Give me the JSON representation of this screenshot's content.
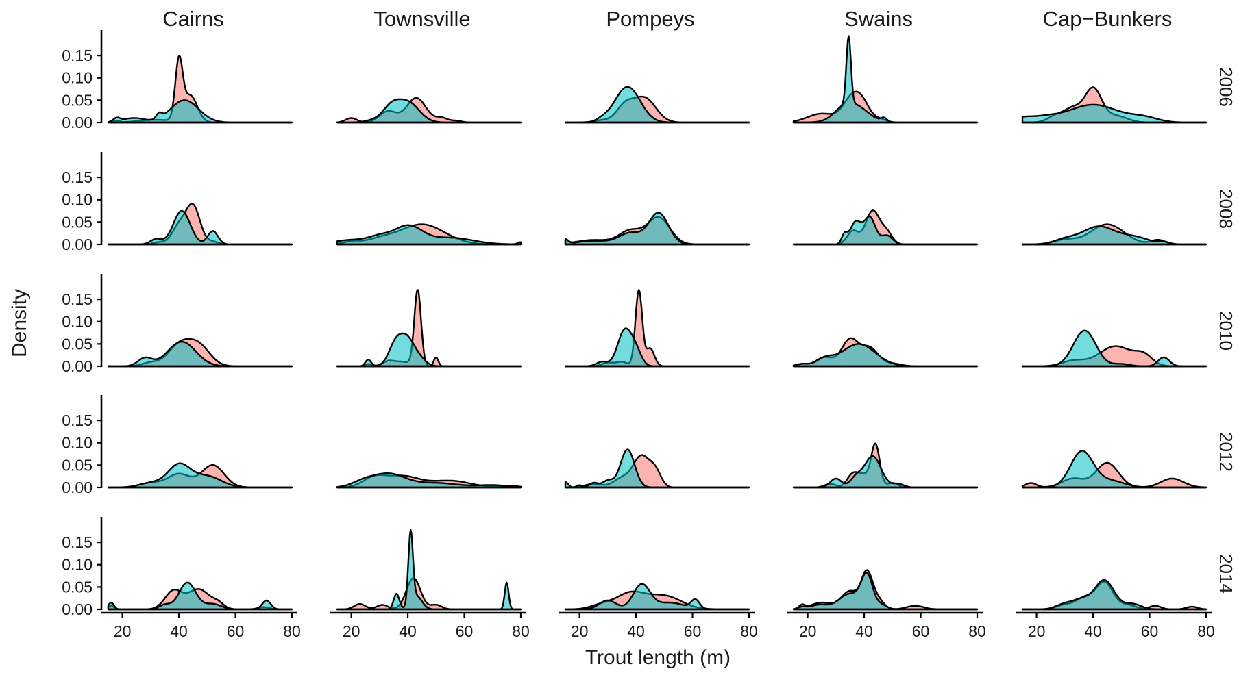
{
  "chart_data": {
    "type": "area",
    "subtype": "faceted-density",
    "xlabel": "Trout length (m)",
    "ylabel": "Density",
    "xlim": [
      15,
      80
    ],
    "ylim": [
      0,
      0.19
    ],
    "x_ticks": [
      20,
      40,
      60,
      80
    ],
    "y_ticks": [
      "0.00",
      "0.05",
      "0.10",
      "0.15"
    ],
    "columns": [
      "Cairns",
      "Townsville",
      "Pompeys",
      "Swains",
      "Cap−Bunkers"
    ],
    "rows": [
      "2006",
      "2008",
      "2010",
      "2012",
      "2014"
    ],
    "grid": false,
    "legend": "none",
    "group_colors": [
      "#F8766D",
      "#00BFC4"
    ],
    "fill_alpha": 0.55,
    "panels": [
      {
        "column": "Cairns",
        "row": "2006",
        "red": [
          [
            0.004,
            18,
            1
          ],
          [
            0.13,
            40,
            1.3
          ],
          [
            0.06,
            44,
            2.5
          ],
          [
            0.006,
            32,
            6
          ]
        ],
        "cyan": [
          [
            0.008,
            18,
            1.2
          ],
          [
            0.01,
            24,
            4
          ],
          [
            0.012,
            33,
            1
          ],
          [
            0.05,
            42,
            5
          ]
        ]
      },
      {
        "column": "Townsville",
        "row": "2006",
        "red": [
          [
            0.01,
            20,
            2
          ],
          [
            0.025,
            33,
            3
          ],
          [
            0.055,
            43,
            3.5
          ],
          [
            0.01,
            52,
            2
          ],
          [
            0.004,
            57,
            2
          ]
        ],
        "cyan": [
          [
            0.005,
            28,
            3
          ],
          [
            0.03,
            34,
            3
          ],
          [
            0.045,
            40,
            4
          ]
        ]
      },
      {
        "column": "Pompeys",
        "row": "2006",
        "red": [
          [
            0.005,
            28,
            3
          ],
          [
            0.035,
            36,
            3
          ],
          [
            0.055,
            43,
            4
          ]
        ],
        "cyan": [
          [
            0.005,
            28,
            2
          ],
          [
            0.08,
            37,
            4.5
          ]
        ]
      },
      {
        "column": "Swains",
        "row": "2006",
        "red": [
          [
            0.02,
            25,
            5
          ],
          [
            0.04,
            35,
            3
          ],
          [
            0.045,
            39,
            3
          ],
          [
            0.006,
            46,
            2
          ]
        ],
        "cyan": [
          [
            0.008,
            32,
            3
          ],
          [
            0.15,
            34.5,
            0.8
          ],
          [
            0.04,
            36,
            5
          ],
          [
            0.008,
            47,
            1
          ]
        ]
      },
      {
        "column": "Cap−Bunkers",
        "row": "2006",
        "red": [
          [
            0.015,
            27,
            3
          ],
          [
            0.03,
            33,
            3
          ],
          [
            0.075,
            40,
            3
          ],
          [
            0.015,
            48,
            4
          ]
        ],
        "cyan": [
          [
            0.008,
            15,
            3
          ],
          [
            0.01,
            22,
            5
          ],
          [
            0.04,
            40,
            9
          ],
          [
            0.01,
            58,
            5
          ]
        ]
      },
      {
        "column": "Cairns",
        "row": "2008",
        "red": [
          [
            0.005,
            33,
            2
          ],
          [
            0.04,
            40,
            2.5
          ],
          [
            0.085,
            45,
            2.5
          ],
          [
            0.006,
            52,
            2
          ]
        ],
        "cyan": [
          [
            0.012,
            32,
            2
          ],
          [
            0.075,
            41,
            3
          ],
          [
            0.03,
            52,
            1.8
          ]
        ]
      },
      {
        "column": "Townsville",
        "row": "2008",
        "red": [
          [
            0.006,
            20,
            3
          ],
          [
            0.01,
            30,
            5
          ],
          [
            0.045,
            45,
            8
          ],
          [
            0.005,
            80,
            1
          ]
        ],
        "cyan": [
          [
            0.01,
            20,
            6
          ],
          [
            0.015,
            30,
            4
          ],
          [
            0.04,
            40,
            5
          ],
          [
            0.015,
            55,
            8
          ],
          [
            0.005,
            80,
            1
          ]
        ]
      },
      {
        "column": "Pompeys",
        "row": "2008",
        "red": [
          [
            0.008,
            15,
            1
          ],
          [
            0.01,
            25,
            6
          ],
          [
            0.03,
            38,
            4
          ],
          [
            0.06,
            48,
            4
          ]
        ],
        "cyan": [
          [
            0.01,
            15,
            1
          ],
          [
            0.008,
            25,
            6
          ],
          [
            0.025,
            38,
            4
          ],
          [
            0.07,
            48,
            3.5
          ]
        ]
      },
      {
        "column": "Swains",
        "row": "2008",
        "red": [
          [
            0.03,
            36,
            2
          ],
          [
            0.075,
            43,
            2.5
          ],
          [
            0.025,
            48,
            2
          ]
        ],
        "cyan": [
          [
            0.02,
            33,
            1
          ],
          [
            0.05,
            37,
            2
          ],
          [
            0.06,
            42,
            2
          ],
          [
            0.02,
            48,
            2
          ]
        ]
      },
      {
        "column": "Cap−Bunkers",
        "row": "2008",
        "red": [
          [
            0.01,
            30,
            4
          ],
          [
            0.045,
            45,
            6
          ],
          [
            0.01,
            63,
            2.5
          ]
        ],
        "cyan": [
          [
            0.01,
            30,
            4
          ],
          [
            0.04,
            42,
            6
          ],
          [
            0.015,
            55,
            5
          ],
          [
            0.005,
            65,
            2
          ]
        ]
      },
      {
        "column": "Cairns",
        "row": "2010",
        "red": [
          [
            0.008,
            30,
            3
          ],
          [
            0.045,
            40,
            4
          ],
          [
            0.045,
            47,
            4
          ]
        ],
        "cyan": [
          [
            0.018,
            28,
            2.5
          ],
          [
            0.055,
            41,
            5
          ]
        ]
      },
      {
        "column": "Townsville",
        "row": "2010",
        "red": [
          [
            0.005,
            26,
            1
          ],
          [
            0.01,
            33,
            2
          ],
          [
            0.17,
            43.5,
            1.2
          ],
          [
            0.01,
            38,
            3
          ],
          [
            0.02,
            50,
            0.8
          ]
        ],
        "cyan": [
          [
            0.015,
            26,
            1
          ],
          [
            0.02,
            35,
            2
          ],
          [
            0.07,
            39,
            3.5
          ],
          [
            0.005,
            45,
            2
          ]
        ]
      },
      {
        "column": "Pompeys",
        "row": "2010",
        "red": [
          [
            0.008,
            30,
            2
          ],
          [
            0.01,
            35,
            2
          ],
          [
            0.17,
            41,
            1.2
          ],
          [
            0.04,
            45,
            1.5
          ]
        ],
        "cyan": [
          [
            0.01,
            28,
            2
          ],
          [
            0.08,
            36,
            2.5
          ],
          [
            0.03,
            40,
            2
          ]
        ]
      },
      {
        "column": "Swains",
        "row": "2010",
        "red": [
          [
            0.005,
            18,
            2
          ],
          [
            0.02,
            26,
            3
          ],
          [
            0.06,
            35,
            3
          ],
          [
            0.04,
            42,
            3
          ],
          [
            0.006,
            50,
            3
          ]
        ],
        "cyan": [
          [
            0.005,
            18,
            2
          ],
          [
            0.015,
            26,
            3
          ],
          [
            0.05,
            38,
            6
          ]
        ]
      },
      {
        "column": "Cap−Bunkers",
        "row": "2010",
        "red": [
          [
            0.012,
            33,
            4
          ],
          [
            0.045,
            48,
            6
          ],
          [
            0.02,
            58,
            3
          ]
        ],
        "cyan": [
          [
            0.08,
            37,
            4
          ],
          [
            0.005,
            50,
            3
          ],
          [
            0.02,
            65,
            2
          ]
        ]
      },
      {
        "column": "Cairns",
        "row": "2012",
        "red": [
          [
            0.01,
            30,
            4
          ],
          [
            0.03,
            40,
            4
          ],
          [
            0.05,
            52,
            4
          ]
        ],
        "cyan": [
          [
            0.01,
            30,
            4
          ],
          [
            0.05,
            40,
            4
          ],
          [
            0.025,
            50,
            5
          ]
        ]
      },
      {
        "column": "Townsville",
        "row": "2012",
        "red": [
          [
            0.02,
            28,
            4
          ],
          [
            0.025,
            38,
            6
          ],
          [
            0.015,
            55,
            7
          ],
          [
            0.004,
            75,
            4
          ]
        ],
        "cyan": [
          [
            0.01,
            24,
            4
          ],
          [
            0.03,
            33,
            6
          ],
          [
            0.01,
            50,
            8
          ],
          [
            0.005,
            70,
            5
          ]
        ]
      },
      {
        "column": "Pompeys",
        "row": "2012",
        "red": [
          [
            0.008,
            25,
            3
          ],
          [
            0.02,
            35,
            3
          ],
          [
            0.07,
            42,
            3
          ],
          [
            0.03,
            47,
            2
          ]
        ],
        "cyan": [
          [
            0.012,
            15,
            1
          ],
          [
            0.005,
            20,
            1
          ],
          [
            0.01,
            25,
            1.5
          ],
          [
            0.015,
            30,
            2
          ],
          [
            0.085,
            37,
            2.5
          ]
        ]
      },
      {
        "column": "Swains",
        "row": "2012",
        "red": [
          [
            0.008,
            28,
            2
          ],
          [
            0.03,
            36,
            2
          ],
          [
            0.025,
            40,
            2
          ],
          [
            0.095,
            44,
            1.5
          ],
          [
            0.01,
            50,
            2
          ]
        ],
        "cyan": [
          [
            0.02,
            30,
            2
          ],
          [
            0.02,
            37,
            2
          ],
          [
            0.07,
            43,
            3
          ],
          [
            0.008,
            52,
            2
          ]
        ]
      },
      {
        "column": "Cap−Bunkers",
        "row": "2012",
        "red": [
          [
            0.01,
            18,
            2
          ],
          [
            0.02,
            33,
            4
          ],
          [
            0.055,
            45,
            4
          ],
          [
            0.02,
            68,
            4
          ]
        ],
        "cyan": [
          [
            0.08,
            36,
            4
          ],
          [
            0.015,
            46,
            5
          ]
        ]
      },
      {
        "column": "Cairns",
        "row": "2014",
        "red": [
          [
            0.008,
            16,
            1
          ],
          [
            0.04,
            38,
            3
          ],
          [
            0.045,
            47,
            4
          ],
          [
            0.01,
            54,
            2
          ],
          [
            0.005,
            70,
            2
          ]
        ],
        "cyan": [
          [
            0.015,
            16,
            1
          ],
          [
            0.01,
            35,
            2
          ],
          [
            0.06,
            43,
            3
          ],
          [
            0.012,
            52,
            3
          ],
          [
            0.02,
            71,
            1.5
          ]
        ]
      },
      {
        "column": "Townsville",
        "row": "2014",
        "red": [
          [
            0.012,
            23,
            2
          ],
          [
            0.01,
            31,
            2
          ],
          [
            0.07,
            42,
            2.5
          ],
          [
            0.01,
            50,
            2
          ]
        ],
        "cyan": [
          [
            0.035,
            36,
            1
          ],
          [
            0.16,
            41,
            0.8
          ],
          [
            0.03,
            43,
            2
          ],
          [
            0.06,
            75,
            0.7
          ]
        ]
      },
      {
        "column": "Pompeys",
        "row": "2014",
        "red": [
          [
            0.01,
            28,
            4
          ],
          [
            0.035,
            38,
            5
          ],
          [
            0.03,
            50,
            6
          ]
        ],
        "cyan": [
          [
            0.02,
            30,
            3
          ],
          [
            0.055,
            42,
            3
          ],
          [
            0.015,
            52,
            5
          ],
          [
            0.02,
            61,
            1.5
          ]
        ]
      },
      {
        "column": "Swains",
        "row": "2014",
        "red": [
          [
            0.008,
            18,
            1
          ],
          [
            0.015,
            25,
            4
          ],
          [
            0.04,
            35,
            3
          ],
          [
            0.08,
            41,
            2
          ],
          [
            0.02,
            45,
            2
          ],
          [
            0.008,
            58,
            3
          ]
        ],
        "cyan": [
          [
            0.005,
            18,
            1.5
          ],
          [
            0.01,
            24,
            3
          ],
          [
            0.035,
            35,
            4
          ],
          [
            0.07,
            41,
            2
          ],
          [
            0.01,
            46,
            2
          ]
        ]
      },
      {
        "column": "Cap−Bunkers",
        "row": "2014",
        "red": [
          [
            0.01,
            30,
            3
          ],
          [
            0.025,
            37,
            3
          ],
          [
            0.06,
            44,
            3
          ],
          [
            0.01,
            52,
            3
          ],
          [
            0.008,
            62,
            2
          ],
          [
            0.006,
            75,
            2
          ]
        ],
        "cyan": [
          [
            0.012,
            30,
            3
          ],
          [
            0.02,
            36,
            3
          ],
          [
            0.065,
            44,
            3.5
          ],
          [
            0.012,
            54,
            3
          ]
        ]
      }
    ]
  }
}
